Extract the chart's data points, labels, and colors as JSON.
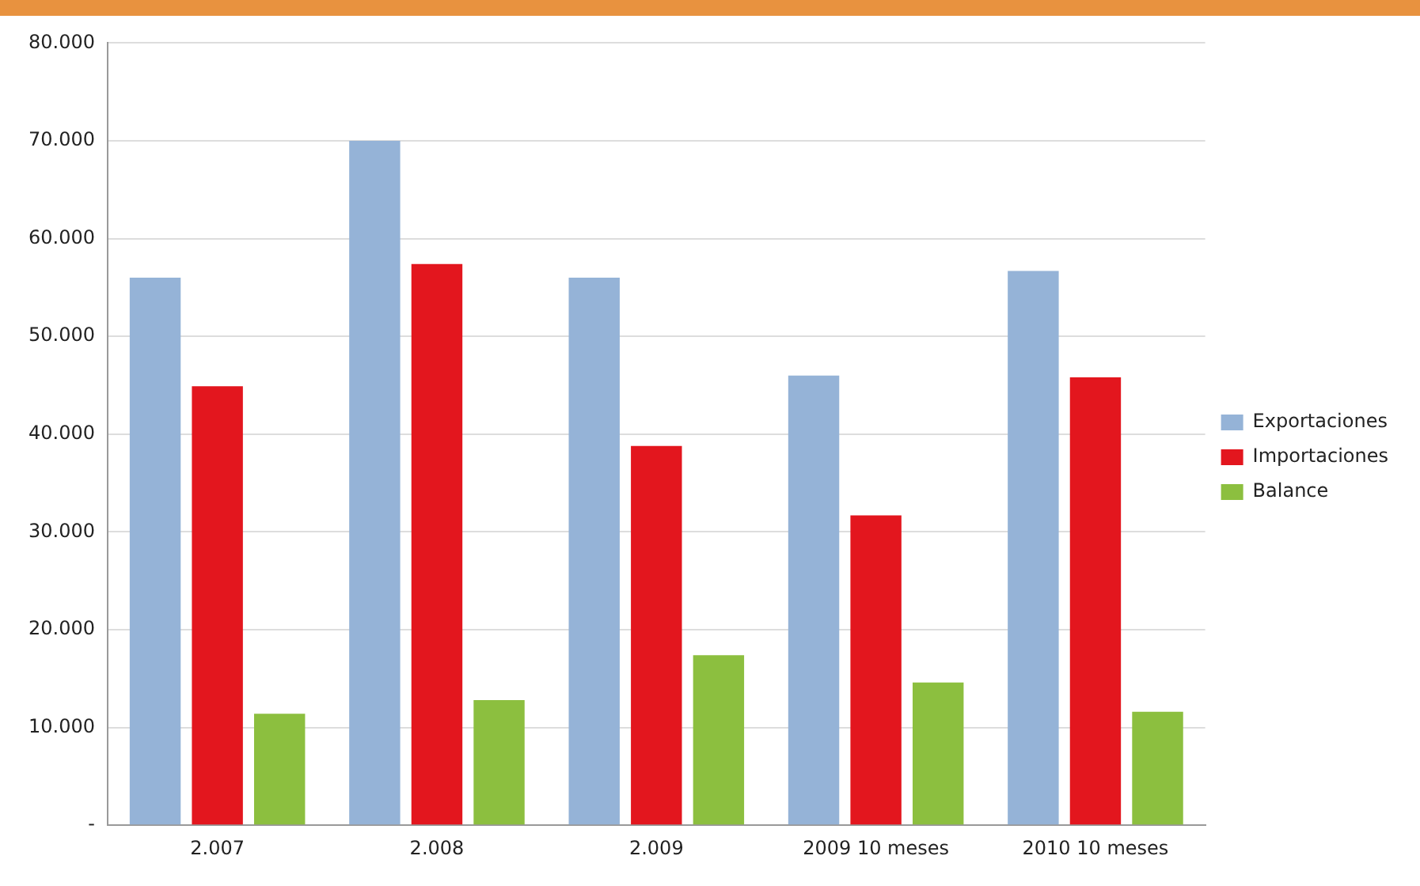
{
  "chart_data": {
    "type": "bar",
    "categories": [
      "2.007",
      "2.008",
      "2.009",
      "2009 10 meses",
      "2010 10 meses"
    ],
    "series": [
      {
        "name": "Exportaciones",
        "color": "#95b3d7",
        "values": [
          56000,
          70000,
          56000,
          46000,
          56700
        ]
      },
      {
        "name": "Importaciones",
        "color": "#e3161e",
        "values": [
          44900,
          57400,
          38800,
          31700,
          45800
        ]
      },
      {
        "name": "Balance",
        "color": "#8cbf3f",
        "values": [
          11400,
          12800,
          17400,
          14600,
          11600
        ]
      }
    ],
    "ylim": [
      0,
      80000
    ],
    "yticks": [
      {
        "value": 0,
        "label": "-"
      },
      {
        "value": 10000,
        "label": "10.000"
      },
      {
        "value": 20000,
        "label": "20.000"
      },
      {
        "value": 30000,
        "label": "30.000"
      },
      {
        "value": 40000,
        "label": "40.000"
      },
      {
        "value": 50000,
        "label": "50.000"
      },
      {
        "value": 60000,
        "label": "60.000"
      },
      {
        "value": 70000,
        "label": "70.000"
      },
      {
        "value": 80000,
        "label": "80.000"
      }
    ],
    "grid": "y",
    "legend": "right"
  }
}
